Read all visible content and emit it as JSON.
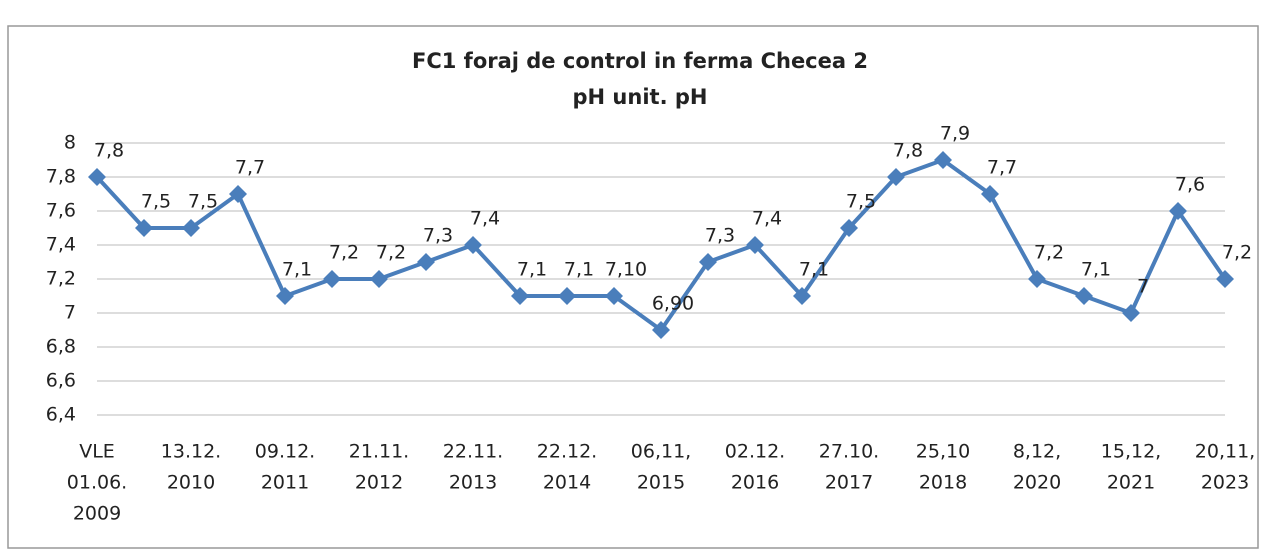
{
  "chart_data": {
    "type": "line",
    "title": "FC1 foraj de control in ferma Checea 2",
    "subtitle": "pH unit. pH",
    "categories": [
      [
        "VLE",
        "01.06.",
        "2009"
      ],
      null,
      [
        "13.12.",
        "2010"
      ],
      null,
      [
        "09.12.",
        "2011"
      ],
      null,
      [
        "21.11.",
        "2012"
      ],
      null,
      [
        "22.11.",
        "2013"
      ],
      null,
      [
        "22.12.",
        "2014"
      ],
      null,
      [
        "06,11,",
        "2015"
      ],
      null,
      [
        "02.12.",
        "2016"
      ],
      null,
      [
        "27.10.",
        "2017"
      ],
      null,
      [
        "25,10",
        "2018"
      ],
      null,
      [
        "8,12,",
        "2020"
      ],
      null,
      [
        "15,12,",
        "2021"
      ],
      null,
      [
        "20,11,",
        "2023"
      ]
    ],
    "values": [
      7.8,
      7.5,
      7.5,
      7.7,
      7.1,
      7.2,
      7.2,
      7.3,
      7.4,
      7.1,
      7.1,
      7.1,
      6.9,
      7.3,
      7.4,
      7.1,
      7.5,
      7.8,
      7.9,
      7.7,
      7.2,
      7.1,
      7,
      7.6,
      7.2
    ],
    "value_labels": [
      "7,8",
      "7,5",
      "7,5",
      "7,7",
      "7,1",
      "7,2",
      "7,2",
      "7,3",
      "7,4",
      "7,1",
      "7,1",
      "7,10",
      "6,90",
      "7,3",
      "7,4",
      "7,1",
      "7,5",
      "7,8",
      "7,9",
      "7,7",
      "7,2",
      "7,1",
      "7",
      "7,6",
      "7,2"
    ],
    "color": "#4a7ebb",
    "ylim": [
      6.4,
      8
    ],
    "yticks": [
      {
        "value": 6.4,
        "label": "6,4"
      },
      {
        "value": 6.6,
        "label": "6,6"
      },
      {
        "value": 6.8,
        "label": "6,8"
      },
      7,
      {
        "value": 7.2,
        "label": "7,2"
      },
      {
        "value": 7.4,
        "label": "7,4"
      },
      {
        "value": 7.6,
        "label": "7,6"
      },
      {
        "value": 7.8,
        "label": "7,8"
      },
      8
    ],
    "grid": true
  }
}
